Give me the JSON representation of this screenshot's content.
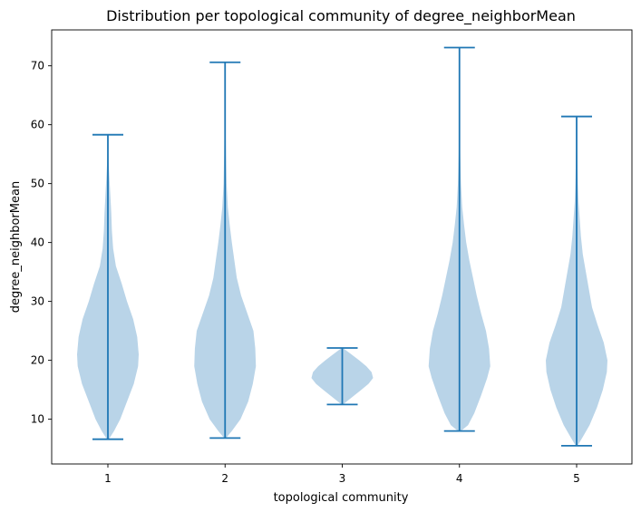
{
  "chart_data": {
    "type": "violin",
    "title": "Distribution per topological community of degree_neighborMean",
    "xlabel": "topological community",
    "ylabel": "degree_neighborMean",
    "categories": [
      "1",
      "2",
      "3",
      "4",
      "5"
    ],
    "ylim": [
      2.4,
      76.1
    ],
    "yticks": [
      10,
      20,
      30,
      40,
      50,
      60,
      70
    ],
    "grid": false,
    "colors": {
      "body": "#b9d4e8",
      "lines": "#1f77b4"
    },
    "violins": [
      {
        "category": "1",
        "min": 6.6,
        "max": 58.3,
        "profile": [
          [
            6.6,
            0.03
          ],
          [
            8,
            0.2
          ],
          [
            10,
            0.4
          ],
          [
            13,
            0.62
          ],
          [
            16,
            0.84
          ],
          [
            19,
            0.98
          ],
          [
            21,
            1.0
          ],
          [
            24,
            0.95
          ],
          [
            27,
            0.82
          ],
          [
            30,
            0.62
          ],
          [
            33,
            0.45
          ],
          [
            36,
            0.26
          ],
          [
            39,
            0.17
          ],
          [
            42,
            0.13
          ],
          [
            45,
            0.11
          ],
          [
            48,
            0.08
          ],
          [
            51,
            0.05
          ],
          [
            54,
            0.02
          ],
          [
            58.3,
            0.0
          ]
        ]
      },
      {
        "category": "2",
        "min": 6.8,
        "max": 70.6,
        "profile": [
          [
            6.8,
            0.03
          ],
          [
            8,
            0.22
          ],
          [
            10,
            0.5
          ],
          [
            13,
            0.75
          ],
          [
            16,
            0.9
          ],
          [
            19,
            1.0
          ],
          [
            22,
            0.98
          ],
          [
            25,
            0.92
          ],
          [
            28,
            0.72
          ],
          [
            31,
            0.52
          ],
          [
            34,
            0.38
          ],
          [
            37,
            0.3
          ],
          [
            40,
            0.22
          ],
          [
            43,
            0.15
          ],
          [
            46,
            0.09
          ],
          [
            50,
            0.05
          ],
          [
            55,
            0.03
          ],
          [
            60,
            0.015
          ],
          [
            65,
            0.008
          ],
          [
            70.6,
            0.0
          ]
        ]
      },
      {
        "category": "3",
        "min": 12.5,
        "max": 22.1,
        "profile": [
          [
            12.5,
            0.03
          ],
          [
            13,
            0.14
          ],
          [
            14,
            0.38
          ],
          [
            15,
            0.62
          ],
          [
            16,
            0.85
          ],
          [
            17,
            1.0
          ],
          [
            18,
            0.95
          ],
          [
            19,
            0.78
          ],
          [
            20,
            0.55
          ],
          [
            21,
            0.3
          ],
          [
            22.1,
            0.02
          ]
        ]
      },
      {
        "category": "4",
        "min": 8.0,
        "max": 73.1,
        "profile": [
          [
            8,
            0.05
          ],
          [
            9,
            0.28
          ],
          [
            11,
            0.48
          ],
          [
            14,
            0.7
          ],
          [
            17,
            0.9
          ],
          [
            19,
            1.0
          ],
          [
            22,
            0.96
          ],
          [
            25,
            0.86
          ],
          [
            28,
            0.7
          ],
          [
            31,
            0.56
          ],
          [
            34,
            0.44
          ],
          [
            37,
            0.32
          ],
          [
            40,
            0.22
          ],
          [
            43,
            0.15
          ],
          [
            46,
            0.09
          ],
          [
            50,
            0.05
          ],
          [
            55,
            0.025
          ],
          [
            60,
            0.012
          ],
          [
            66,
            0.006
          ],
          [
            73.1,
            0.0
          ]
        ]
      },
      {
        "category": "5",
        "min": 5.5,
        "max": 61.4,
        "profile": [
          [
            5.5,
            0.03
          ],
          [
            7,
            0.2
          ],
          [
            9,
            0.42
          ],
          [
            12,
            0.66
          ],
          [
            15,
            0.85
          ],
          [
            18,
            0.98
          ],
          [
            20,
            1.0
          ],
          [
            23,
            0.88
          ],
          [
            26,
            0.68
          ],
          [
            29,
            0.5
          ],
          [
            32,
            0.4
          ],
          [
            35,
            0.3
          ],
          [
            38,
            0.2
          ],
          [
            41,
            0.14
          ],
          [
            44,
            0.1
          ],
          [
            47,
            0.06
          ],
          [
            50,
            0.04
          ],
          [
            55,
            0.02
          ],
          [
            61.4,
            0.0
          ]
        ]
      }
    ]
  }
}
